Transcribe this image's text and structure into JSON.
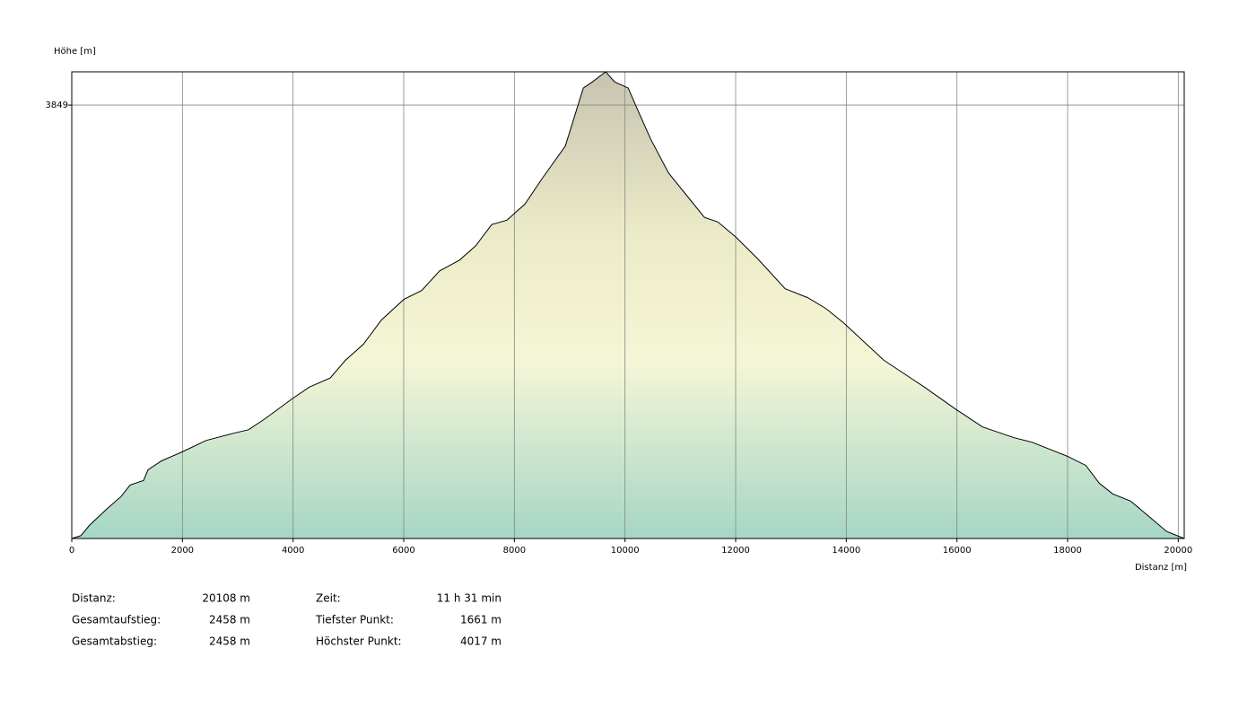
{
  "chart_data": {
    "type": "area",
    "y_label": "Höhe [m]",
    "x_label": "Distanz [m]",
    "x": [
      0,
      162,
      324,
      649,
      892,
      1054,
      1298,
      1379,
      1622,
      1995,
      2433,
      2920,
      3195,
      3487,
      3990,
      4298,
      4671,
      4947,
      5272,
      5596,
      6001,
      6325,
      6650,
      7007,
      7299,
      7591,
      7867,
      8191,
      8516,
      8921,
      9246,
      9408,
      9651,
      9814,
      10057,
      10219,
      10462,
      10786,
      11111,
      11435,
      11678,
      12003,
      12408,
      12895,
      13300,
      13625,
      13949,
      14679,
      15409,
      15977,
      16463,
      17031,
      17355,
      18004,
      18329,
      18572,
      18815,
      19139,
      19464,
      19788,
      20108
    ],
    "values": [
      1661,
      1675,
      1729,
      1814,
      1873,
      1931,
      1954,
      2008,
      2053,
      2098,
      2156,
      2192,
      2210,
      2264,
      2368,
      2426,
      2471,
      2561,
      2642,
      2764,
      2868,
      2913,
      3012,
      3066,
      3138,
      3246,
      3268,
      3349,
      3484,
      3642,
      3935,
      3966,
      4017,
      3966,
      3935,
      3831,
      3678,
      3507,
      3394,
      3282,
      3259,
      3183,
      3070,
      2922,
      2877,
      2823,
      2750,
      2561,
      2426,
      2314,
      2224,
      2170,
      2147,
      2075,
      2030,
      1940,
      1886,
      1850,
      1774,
      1697,
      1661
    ],
    "color": "#000000",
    "xlim": [
      0,
      20108
    ],
    "ylim": [
      1661,
      4017
    ],
    "xticks": [
      0,
      2000,
      4000,
      6000,
      8000,
      10000,
      12000,
      14000,
      16000,
      18000,
      20000
    ],
    "yticks": [
      3849
    ],
    "grid": true
  },
  "stats": [
    {
      "label": "Distanz:",
      "value": "20108 m"
    },
    {
      "label": "Gesamtaufstieg:",
      "value": "2458 m"
    },
    {
      "label": "Gesamtabstieg:",
      "value": "2458 m"
    },
    {
      "label": "Zeit:",
      "value": "11 h 31 min"
    },
    {
      "label": "Tiefster Punkt:",
      "value": "1661 m"
    },
    {
      "label": "Höchster Punkt:",
      "value": "4017 m"
    }
  ]
}
